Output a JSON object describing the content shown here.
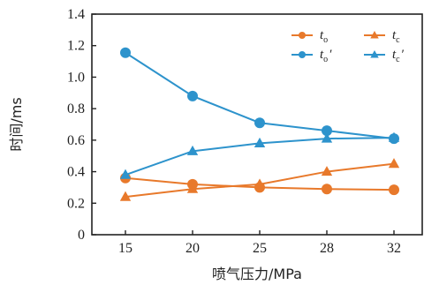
{
  "chart_data": {
    "type": "line",
    "xlabel": "喷气压力/MPa",
    "ylabel": "时间/ms",
    "categories": [
      "15",
      "20",
      "25",
      "28",
      "32"
    ],
    "ylim": [
      0,
      1.4
    ],
    "yticks": [
      "0",
      "0.2",
      "0.4",
      "0.6",
      "0.8",
      "1.0",
      "1.2",
      "1.4"
    ],
    "grid": false,
    "legend_position": "top-right",
    "series": [
      {
        "name": "t_o",
        "legend_main": "t",
        "legend_sub": "o",
        "legend_prime": "",
        "color": "#E8792B",
        "marker": "circle",
        "values": [
          0.36,
          0.32,
          0.3,
          0.29,
          0.285
        ]
      },
      {
        "name": "t_c",
        "legend_main": "t",
        "legend_sub": "c",
        "legend_prime": "",
        "color": "#E8792B",
        "marker": "triangle",
        "values": [
          0.24,
          0.29,
          0.32,
          0.4,
          0.45
        ]
      },
      {
        "name": "t_o'",
        "legend_main": "t",
        "legend_sub": "o",
        "legend_prime": "′",
        "color": "#2D93CC",
        "marker": "circle",
        "values": [
          1.155,
          0.88,
          0.71,
          0.66,
          0.61
        ]
      },
      {
        "name": "t_c'",
        "legend_main": "t",
        "legend_sub": "c",
        "legend_prime": "′",
        "color": "#2D93CC",
        "marker": "triangle",
        "values": [
          0.38,
          0.53,
          0.58,
          0.61,
          0.615
        ]
      }
    ]
  }
}
